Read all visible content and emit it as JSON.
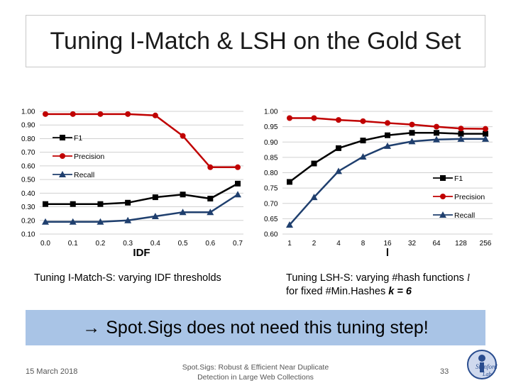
{
  "slide": {
    "title": "Tuning I-Match & LSH on the Gold Set",
    "left_caption": "Tuning I-Match-S: varying IDF thresholds",
    "right_caption_prefix": "Tuning LSH-S: varying #hash functions ",
    "right_caption_var": "l",
    "right_caption_line2_prefix": "for fixed #Min.Hashes ",
    "right_caption_line2_bold": "k = 6",
    "banner_arrow": "→",
    "banner_text": "Spot.Sigs does not need this tuning step!",
    "footer_date": "15 March 2018",
    "footer_center_line1": "Spot.Sigs: Robust & Efficient Near Duplicate",
    "footer_center_line2": "Detection in Large Web Collections",
    "page_number": "33",
    "logo_text": "Stanford Lab"
  },
  "colors": {
    "f1": "#000000",
    "precision": "#c00000",
    "recall": "#1f3f6e",
    "banner": "#a9c4e6"
  },
  "chart_data": [
    {
      "type": "line",
      "x": [
        "0.0",
        "0.1",
        "0.2",
        "0.3",
        "0.4",
        "0.5",
        "0.6",
        "0.7"
      ],
      "xlabel": "IDF",
      "ylabel": "",
      "ylim": [
        0.1,
        1.0
      ],
      "yticks": [
        "0.10",
        "0.20",
        "0.30",
        "0.40",
        "0.50",
        "0.60",
        "0.70",
        "0.80",
        "0.90",
        "1.00"
      ],
      "legend_position": "upper-left",
      "series": [
        {
          "name": "F1",
          "marker": "square",
          "color": "#000000",
          "values": [
            0.32,
            0.32,
            0.32,
            0.33,
            0.37,
            0.39,
            0.36,
            0.47
          ]
        },
        {
          "name": "Precision",
          "marker": "circle",
          "color": "#c00000",
          "values": [
            0.98,
            0.98,
            0.98,
            0.98,
            0.97,
            0.82,
            0.59,
            0.59
          ]
        },
        {
          "name": "Recall",
          "marker": "triangle",
          "color": "#1f3f6e",
          "values": [
            0.19,
            0.19,
            0.19,
            0.2,
            0.23,
            0.26,
            0.26,
            0.39
          ]
        }
      ]
    },
    {
      "type": "line",
      "x": [
        "1",
        "2",
        "4",
        "8",
        "16",
        "32",
        "64",
        "128",
        "256"
      ],
      "xlabel": "l",
      "ylabel": "",
      "ylim": [
        0.6,
        1.0
      ],
      "yticks": [
        "0.60",
        "0.65",
        "0.70",
        "0.75",
        "0.80",
        "0.85",
        "0.90",
        "0.95",
        "1.00"
      ],
      "legend_position": "lower-right",
      "series": [
        {
          "name": "F1",
          "marker": "square",
          "color": "#000000",
          "values": [
            0.77,
            0.83,
            0.88,
            0.905,
            0.922,
            0.93,
            0.93,
            0.927,
            0.927
          ]
        },
        {
          "name": "Precision",
          "marker": "circle",
          "color": "#c00000",
          "values": [
            0.978,
            0.978,
            0.972,
            0.968,
            0.962,
            0.957,
            0.95,
            0.944,
            0.943
          ]
        },
        {
          "name": "Recall",
          "marker": "triangle",
          "color": "#1f3f6e",
          "values": [
            0.63,
            0.72,
            0.805,
            0.852,
            0.887,
            0.902,
            0.908,
            0.91,
            0.91
          ]
        }
      ]
    }
  ]
}
